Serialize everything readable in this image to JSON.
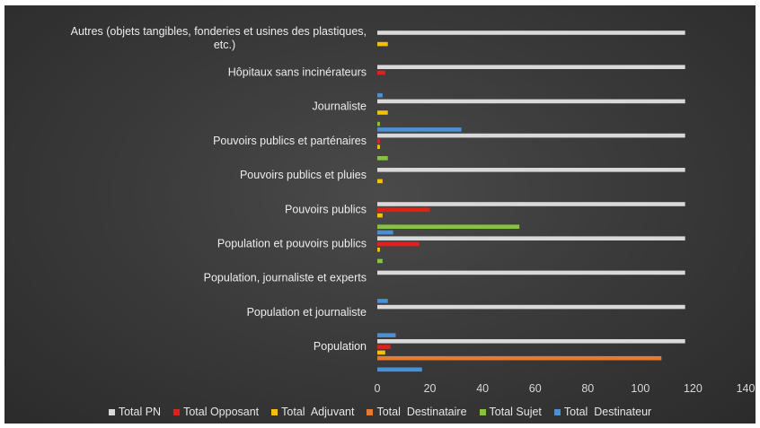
{
  "chart_data": {
    "type": "bar",
    "orientation": "horizontal",
    "xlim": [
      0,
      140
    ],
    "x_ticks": [
      "0",
      "20",
      "40",
      "60",
      "80",
      "100",
      "120",
      "140"
    ],
    "grid": false,
    "legend_position": "bottom",
    "categories": [
      "Population",
      "Population et journaliste",
      "Population, journaliste et experts",
      "Population et  pouvoirs publics",
      "Pouvoirs publics",
      "Pouvoirs publics et pluies",
      "Pouvoirs publics et parténaires",
      "Journaliste",
      "Hôpitaux sans incinérateurs",
      "Autres (objets tangibles, fonderies et usines des plastiques, etc.)"
    ],
    "category_lines": [
      [
        "Population"
      ],
      [
        "Population et journaliste"
      ],
      [
        "Population, journaliste et experts"
      ],
      [
        "Population et  pouvoirs publics"
      ],
      [
        "Pouvoirs publics"
      ],
      [
        "Pouvoirs publics et pluies"
      ],
      [
        "Pouvoirs publics et parténaires"
      ],
      [
        "Journaliste"
      ],
      [
        "Hôpitaux sans incinérateurs"
      ],
      [
        "Autres (objets tangibles, fonderies et usines des plastiques,",
        "etc.)"
      ]
    ],
    "series": [
      {
        "name": "Total PN",
        "color": "#d9d9d9",
        "values": [
          117,
          117,
          117,
          117,
          117,
          117,
          117,
          117,
          117,
          117
        ]
      },
      {
        "name": "Total Opposant",
        "color": "#e0201b",
        "values": [
          5,
          0,
          0,
          16,
          20,
          0,
          1,
          0,
          3,
          0
        ]
      },
      {
        "name": "Total  Adjuvant",
        "color": "#f5c000",
        "values": [
          3,
          0,
          0,
          1,
          2,
          2,
          1,
          4,
          0,
          4
        ]
      },
      {
        "name": "Total  Destinataire",
        "color": "#e8792f",
        "values": [
          108,
          0,
          0,
          0,
          0,
          0,
          0,
          0,
          0,
          0
        ]
      },
      {
        "name": "Total Sujet",
        "color": "#86c440",
        "values": [
          0,
          0,
          0,
          2,
          54,
          0,
          4,
          1,
          0,
          0
        ]
      },
      {
        "name": "Total  Destinateur",
        "color": "#4b8fd6",
        "values": [
          17,
          7,
          4,
          0,
          6,
          0,
          0,
          32,
          2,
          0
        ]
      }
    ]
  }
}
